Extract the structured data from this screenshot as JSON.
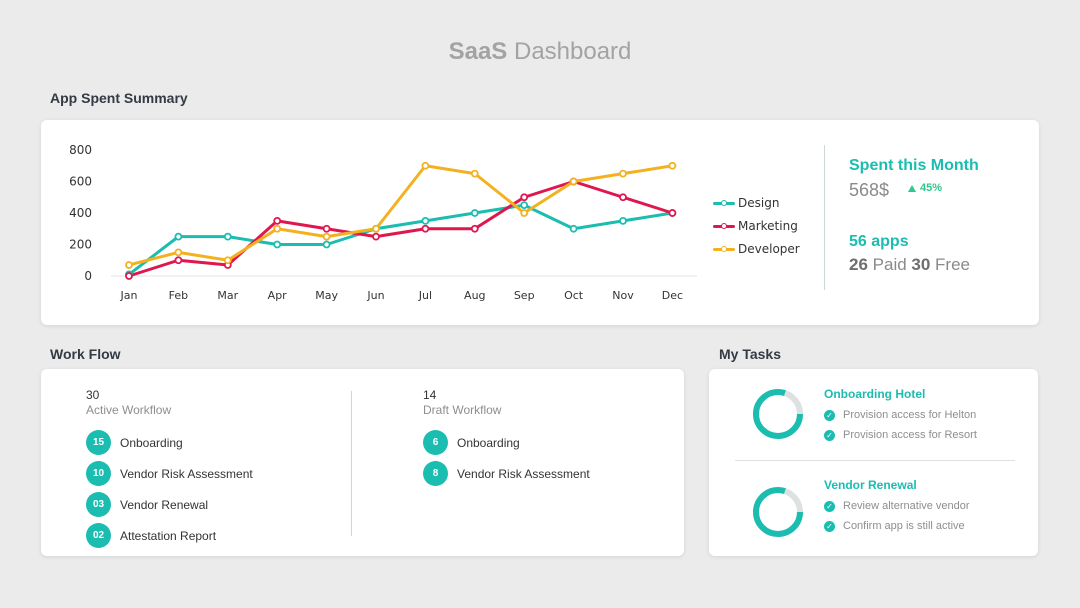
{
  "page": {
    "title_bold": "SaaS",
    "title_rest": " Dashboard"
  },
  "app_spent": {
    "section_title": "App Spent Summary",
    "kpi": {
      "spent_title": "Spent this Month",
      "spent_value": "568$",
      "spent_change": "45%",
      "apps_title": "56 apps",
      "paid_count": "26",
      "paid_label": " Paid ",
      "free_count": "30",
      "free_label": " Free"
    }
  },
  "chart_data": {
    "type": "line",
    "categories": [
      "Jan",
      "Feb",
      "Mar",
      "Apr",
      "May",
      "Jun",
      "Jul",
      "Aug",
      "Sep",
      "Oct",
      "Nov",
      "Dec"
    ],
    "yticks": [
      0,
      200,
      400,
      600,
      800
    ],
    "ylim": [
      0,
      800
    ],
    "legend_position": "right",
    "grid": false,
    "series": [
      {
        "name": "Design",
        "color": "#1bbdb0",
        "values": [
          10,
          250,
          250,
          200,
          200,
          300,
          350,
          400,
          450,
          300,
          350,
          400
        ]
      },
      {
        "name": "Marketing",
        "color": "#e0174f",
        "values": [
          0,
          100,
          70,
          350,
          300,
          250,
          300,
          300,
          500,
          600,
          500,
          400
        ]
      },
      {
        "name": "Developer",
        "color": "#f4b11f",
        "values": [
          70,
          150,
          100,
          300,
          250,
          300,
          700,
          650,
          400,
          600,
          650,
          700
        ]
      }
    ]
  },
  "workflow": {
    "section_title": "Work Flow",
    "active": {
      "count": "30",
      "label": "Active Workflow",
      "items": [
        {
          "badge": "15",
          "label": "Onboarding"
        },
        {
          "badge": "10",
          "label": "Vendor Risk Assessment"
        },
        {
          "badge": "03",
          "label": "Vendor Renewal"
        },
        {
          "badge": "02",
          "label": "Attestation Report"
        }
      ]
    },
    "draft": {
      "count": "14",
      "label": "Draft Workflow",
      "items": [
        {
          "badge": "6",
          "label": "Onboarding"
        },
        {
          "badge": "8",
          "label": "Vendor Risk Assessment"
        }
      ]
    }
  },
  "tasks": {
    "section_title": "My Tasks",
    "groups": [
      {
        "title": "Onboarding Hotel",
        "progress": 0.8,
        "items": [
          "Provision access for Helton",
          "Provision access for Resort"
        ],
        "icon": "check-circle-icon"
      },
      {
        "title": "Vendor Renewal",
        "progress": 0.8,
        "items": [
          "Review alternative vendor",
          "Confirm app is still active"
        ],
        "icon": "check-circle-icon"
      }
    ]
  }
}
